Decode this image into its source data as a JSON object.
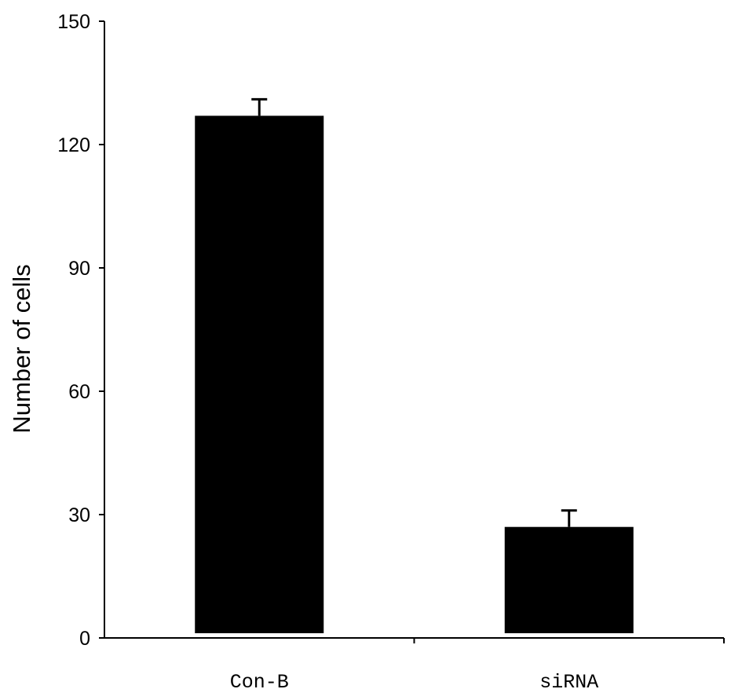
{
  "chart_data": {
    "type": "bar",
    "title": "",
    "xlabel": "",
    "ylabel": "Number of cells",
    "categories": [
      "Con-B",
      "siRNA"
    ],
    "values": [
      127,
      27
    ],
    "errors": [
      4,
      4
    ],
    "ylim": [
      0,
      150
    ],
    "yticks": [
      0,
      30,
      60,
      90,
      120,
      150
    ],
    "grid": false,
    "legend": "none",
    "bar_color": "#000000"
  }
}
